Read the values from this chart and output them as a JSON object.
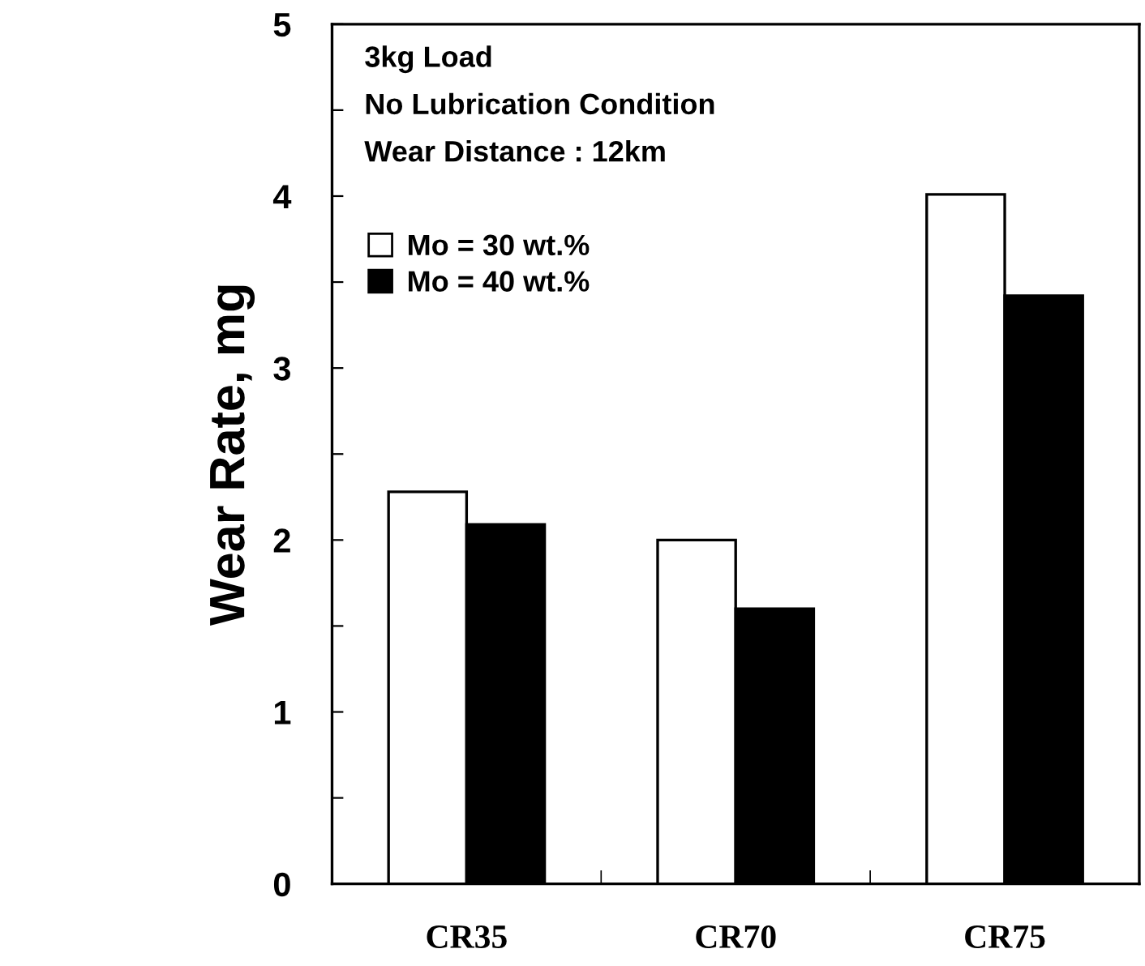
{
  "chart_data": {
    "type": "bar",
    "ylabel": "Wear Rate, mg",
    "categories": [
      "CR35",
      "CR70",
      "CR75"
    ],
    "series": [
      {
        "name": "Mo = 30 wt.%",
        "color": "#ffffff",
        "values": [
          2.28,
          2.0,
          4.01
        ]
      },
      {
        "name": "Mo = 40 wt.%",
        "color": "#000000",
        "values": [
          2.09,
          1.6,
          3.42
        ]
      }
    ],
    "annotations": [
      "3kg Load",
      "No Lubrication Condition",
      "Wear Distance : 12km"
    ],
    "ylim": [
      0,
      5
    ],
    "yticks": [
      0,
      {
        "value": 0.5,
        "label": null
      },
      1,
      {
        "value": 1.5,
        "label": null
      },
      2,
      {
        "value": 2.5,
        "label": null
      },
      3,
      {
        "value": 3.5,
        "label": null
      },
      4,
      {
        "value": 4.5,
        "label": null
      },
      5
    ],
    "legend": "top left",
    "grid": false
  }
}
